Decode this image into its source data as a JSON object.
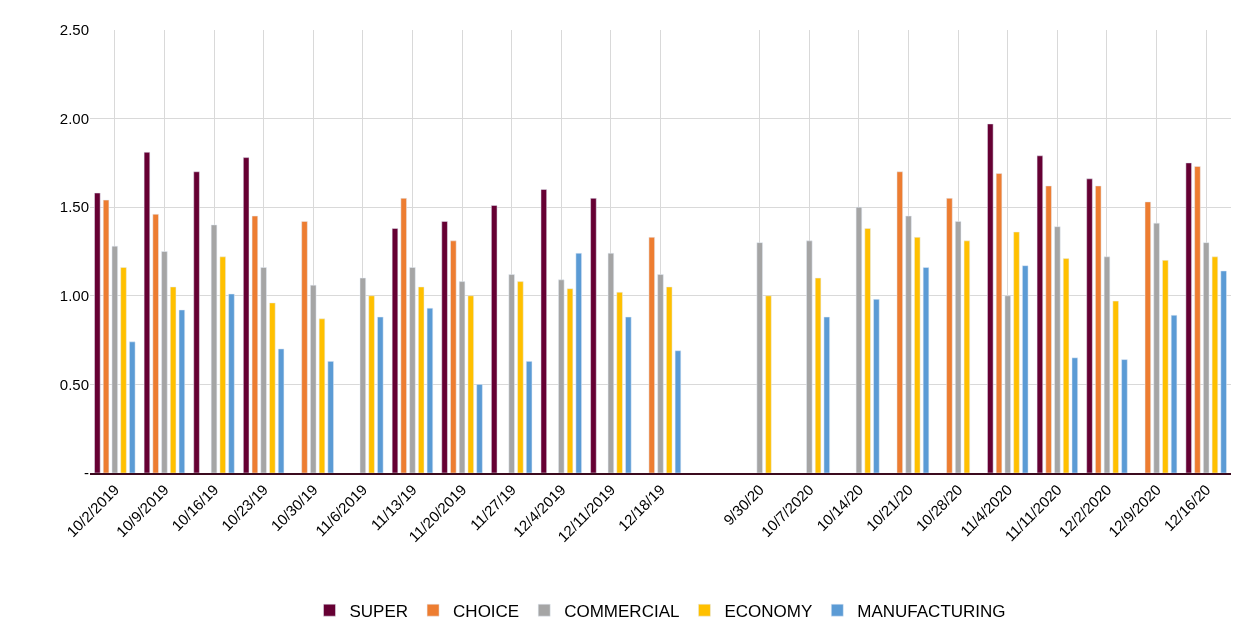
{
  "chart_data": {
    "type": "bar",
    "categories": [
      "10/2/2019",
      "10/9/2019",
      "10/16/19",
      "10/23/19",
      "10/30/19",
      "11/6/2019",
      "11/13/19",
      "11/20/2019",
      "11/27/19",
      "12/4/2019",
      "12/11/2019",
      "12/18/19",
      null,
      "9/30/20",
      "10/7/2020",
      "10/14/20",
      "10/21/20",
      "10/28/20",
      "11/4/2020",
      "11/11/2020",
      "12/2/2020",
      "12/9/2020",
      "12/16/20"
    ],
    "series": [
      {
        "name": "SUPER",
        "color": "#660033",
        "values": [
          1.58,
          1.81,
          1.7,
          1.78,
          null,
          null,
          1.38,
          1.42,
          1.51,
          1.6,
          1.55,
          null,
          null,
          null,
          null,
          null,
          null,
          null,
          1.97,
          1.79,
          1.66,
          null,
          1.75
        ]
      },
      {
        "name": "CHOICE",
        "color": "#ed7d31",
        "values": [
          1.54,
          1.46,
          null,
          1.45,
          1.42,
          null,
          1.55,
          1.31,
          null,
          null,
          null,
          1.33,
          null,
          null,
          null,
          null,
          1.7,
          1.55,
          1.69,
          1.62,
          1.62,
          1.53,
          1.73
        ]
      },
      {
        "name": "COMMERCIAL",
        "color": "#a5a5a5",
        "values": [
          1.28,
          1.25,
          1.4,
          1.16,
          1.06,
          1.1,
          1.16,
          1.08,
          1.12,
          1.09,
          1.24,
          1.12,
          null,
          1.3,
          1.31,
          1.5,
          1.45,
          1.42,
          1.0,
          1.39,
          1.22,
          1.41,
          1.3
        ]
      },
      {
        "name": "ECONOMY",
        "color": "#ffc000",
        "values": [
          1.16,
          1.05,
          1.22,
          0.96,
          0.87,
          1.0,
          1.05,
          1.0,
          1.08,
          1.04,
          1.02,
          1.05,
          null,
          1.0,
          1.1,
          1.38,
          1.33,
          1.31,
          1.36,
          1.21,
          0.97,
          1.2,
          1.22
        ]
      },
      {
        "name": "MANUFACTURING",
        "color": "#5b9bd5",
        "values": [
          0.74,
          0.92,
          1.01,
          0.7,
          0.63,
          0.88,
          0.93,
          0.5,
          0.63,
          1.24,
          0.88,
          0.69,
          null,
          null,
          0.88,
          0.98,
          1.16,
          null,
          1.17,
          0.65,
          0.64,
          0.89,
          1.14
        ]
      }
    ],
    "ylim": [
      0,
      2.5
    ],
    "yticks": [
      {
        "value": 0,
        "label": "-"
      },
      {
        "value": 0.5,
        "label": "0.50"
      },
      {
        "value": 1,
        "label": "1.00"
      },
      {
        "value": 1.5,
        "label": "1.50"
      },
      {
        "value": 2,
        "label": "2.00"
      },
      {
        "value": 2.5,
        "label": "2.50"
      }
    ],
    "grid": true,
    "legend": "bottom"
  }
}
